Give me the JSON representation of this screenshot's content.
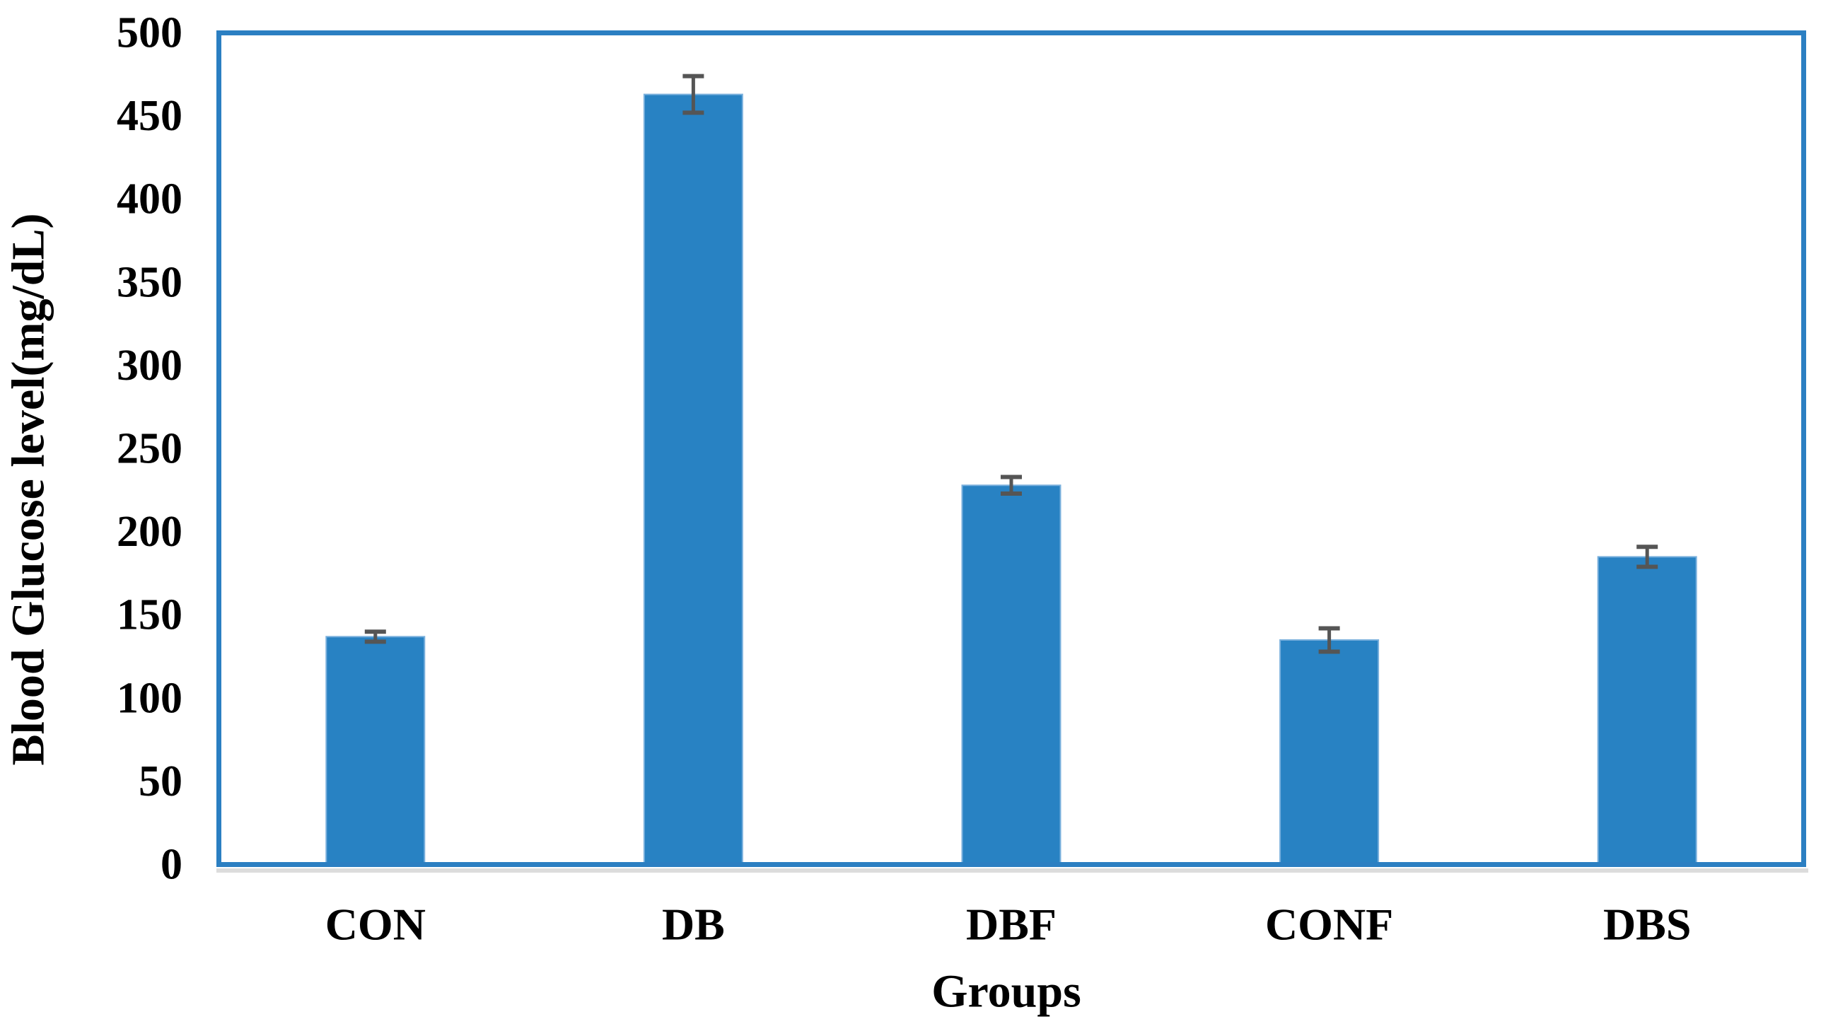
{
  "chart_data": {
    "type": "bar",
    "title": "",
    "xlabel": "Groups",
    "ylabel": "Blood Glucose level(mg/dL)",
    "categories": [
      "CON",
      "DB",
      "DBF",
      "CONF",
      "DBS"
    ],
    "values": [
      137,
      463,
      228,
      135,
      185
    ],
    "errors": [
      3,
      11,
      5,
      7,
      6
    ],
    "ylim": [
      0,
      500
    ],
    "ytick_step": 50,
    "yticks": [
      0,
      50,
      100,
      150,
      200,
      250,
      300,
      350,
      400,
      450,
      500
    ],
    "grid": false,
    "legend_position": "none",
    "bar_color": "#2882c3",
    "bar_edge_color": "#7ab0dd",
    "frame_color": "#2b7fc2",
    "error_color": "#555555",
    "axis_shadow_color": "#dcdcdc",
    "text_color": "#000000"
  }
}
